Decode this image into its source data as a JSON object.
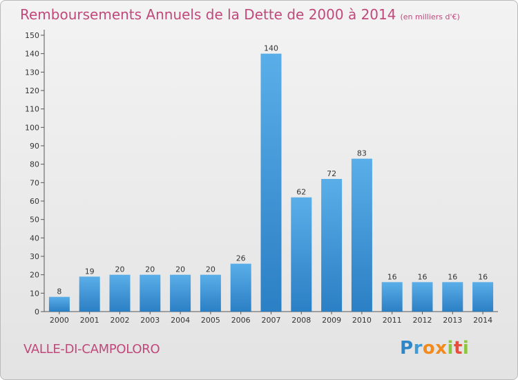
{
  "header": {
    "title": "Remboursements Annuels de la Dette de 2000 à 2014",
    "unit": "(en milliers d'€)"
  },
  "footer": {
    "commune": "VALLE-DI-CAMPOLORO",
    "logo": "Proxiti"
  },
  "chart_data": {
    "type": "bar",
    "title": "Remboursements Annuels de la Dette de 2000 à 2014",
    "subtitle": "(en milliers d'€)",
    "xlabel": "",
    "ylabel": "",
    "categories": [
      "2000",
      "2001",
      "2002",
      "2003",
      "2004",
      "2005",
      "2006",
      "2007",
      "2008",
      "2009",
      "2010",
      "2011",
      "2012",
      "2013",
      "2014"
    ],
    "values": [
      8,
      19,
      20,
      20,
      20,
      20,
      26,
      140,
      62,
      72,
      83,
      16,
      16,
      16,
      16
    ],
    "ylim": [
      0,
      150
    ],
    "yticks": [
      0,
      10,
      20,
      30,
      40,
      50,
      60,
      70,
      80,
      90,
      100,
      110,
      120,
      130,
      140,
      150
    ],
    "grid": false,
    "colors": {
      "bar_light": "#5aaee8",
      "bar_dark": "#2b7fc4",
      "title": "#c0487a"
    }
  }
}
